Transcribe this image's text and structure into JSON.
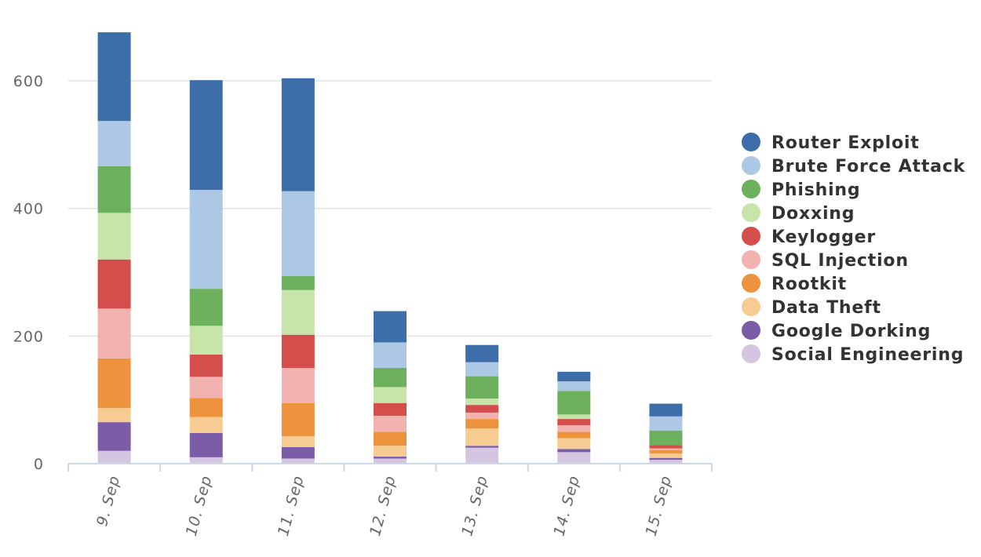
{
  "chart_data": {
    "type": "bar",
    "stacked": true,
    "categories": [
      "9. Sep",
      "10. Sep",
      "11. Sep",
      "12. Sep",
      "13. Sep",
      "14. Sep",
      "15. Sep"
    ],
    "ylim": [
      0,
      700
    ],
    "yticks": [
      0,
      200,
      400,
      600
    ],
    "grid": true,
    "legend_position": "right",
    "series": [
      {
        "name": "Social Engineering",
        "color": "#d5c5e1",
        "values": [
          20,
          10,
          8,
          8,
          25,
          18,
          6
        ]
      },
      {
        "name": "Google Dorking",
        "color": "#7b5da7",
        "values": [
          45,
          38,
          18,
          3,
          3,
          5,
          3
        ]
      },
      {
        "name": "Data Theft",
        "color": "#f7cc92",
        "values": [
          22,
          25,
          17,
          17,
          27,
          17,
          7
        ]
      },
      {
        "name": "Rootkit",
        "color": "#ee933d",
        "values": [
          78,
          30,
          52,
          22,
          15,
          10,
          5
        ]
      },
      {
        "name": "SQL Injection",
        "color": "#f2b2b0",
        "values": [
          78,
          33,
          55,
          25,
          10,
          10,
          3
        ]
      },
      {
        "name": "Keylogger",
        "color": "#d44e4c",
        "values": [
          77,
          35,
          52,
          20,
          12,
          10,
          5
        ]
      },
      {
        "name": "Doxxing",
        "color": "#c8e5a9",
        "values": [
          73,
          45,
          70,
          25,
          10,
          7,
          0
        ]
      },
      {
        "name": "Phishing",
        "color": "#6db05e",
        "values": [
          73,
          58,
          22,
          30,
          35,
          37,
          23
        ]
      },
      {
        "name": "Brute Force Attack",
        "color": "#adc8e5",
        "values": [
          71,
          155,
          133,
          40,
          22,
          15,
          22
        ]
      },
      {
        "name": "Router Exploit",
        "color": "#3d6eaa",
        "values": [
          139,
          172,
          177,
          49,
          27,
          15,
          20
        ]
      }
    ]
  }
}
